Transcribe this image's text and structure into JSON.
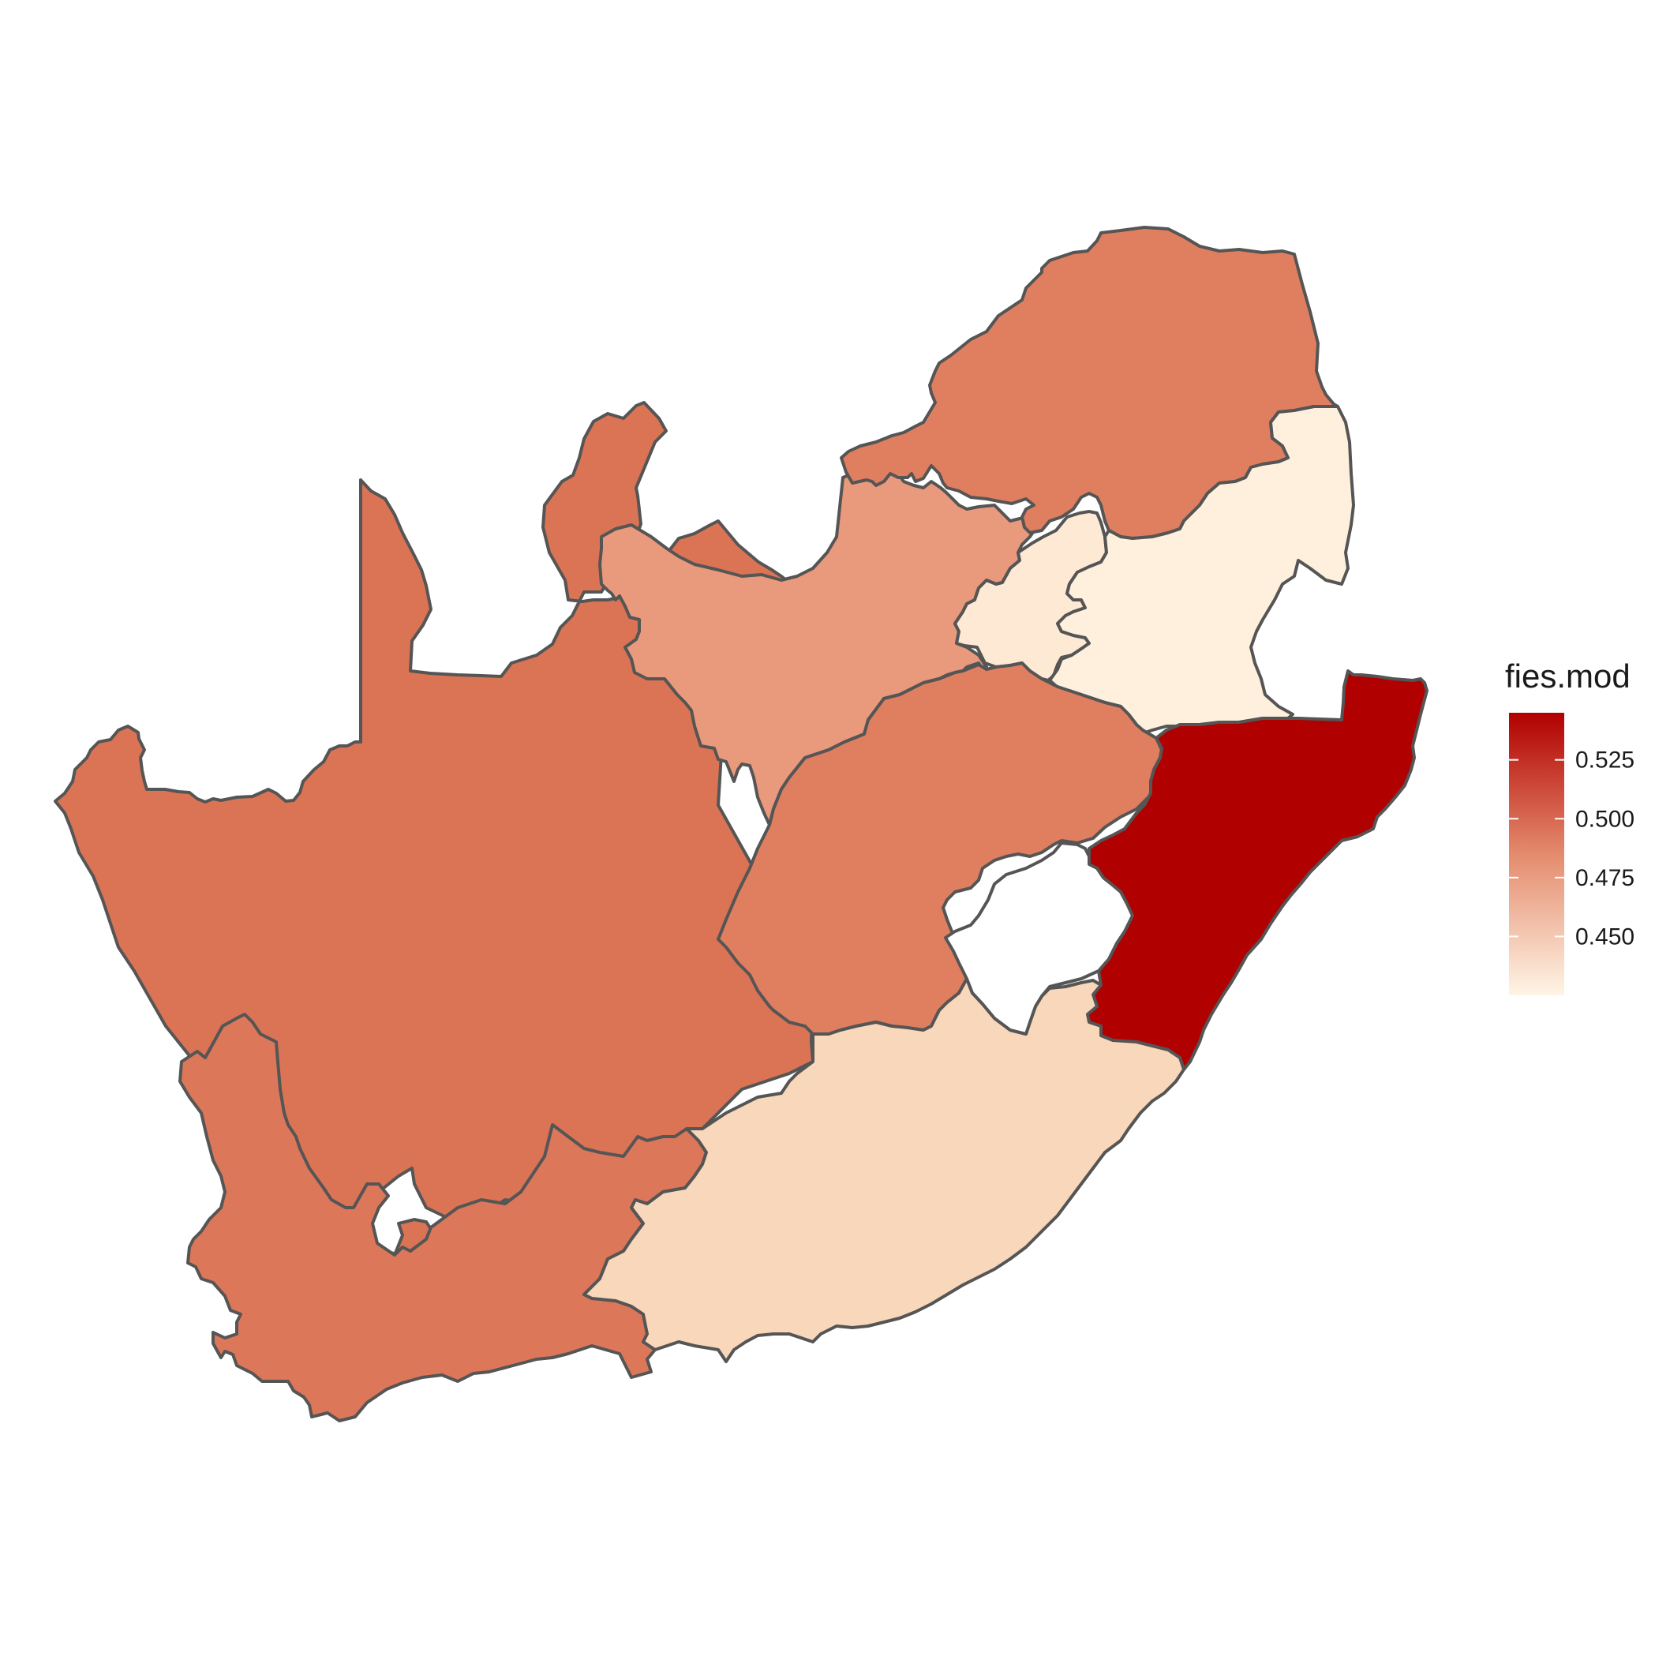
{
  "map": {
    "value_variable": "fies.mod",
    "border_color": "#555555",
    "missing_region_fill": "#ffffff",
    "regions": [
      {
        "id": "limpopo",
        "value": 0.495,
        "fill": "#e07f60"
      },
      {
        "id": "mpumalanga",
        "value": 0.425,
        "fill": "#fef0dc"
      },
      {
        "id": "gauteng",
        "value": 0.43,
        "fill": "#fde9d4"
      },
      {
        "id": "north-west",
        "value": 0.475,
        "fill": "#e99a7c"
      },
      {
        "id": "free-state",
        "value": 0.495,
        "fill": "#e07f60"
      },
      {
        "id": "kwazulu-natal",
        "value": 0.545,
        "fill": "#b10000"
      },
      {
        "id": "eastern-cape",
        "value": 0.445,
        "fill": "#f8d7bb"
      },
      {
        "id": "northern-cape",
        "value": 0.505,
        "fill": "#db7455"
      },
      {
        "id": "western-cape",
        "value": 0.5,
        "fill": "#dd7759"
      }
    ]
  },
  "legend": {
    "title": "fies.mod",
    "scale": {
      "min": 0.425,
      "max": 0.545,
      "low_color": "#fff5e6",
      "mid_color": "#e48b6d",
      "high_color": "#b10000"
    },
    "ticks": [
      {
        "value": 0.525,
        "label": "0.525"
      },
      {
        "value": 0.5,
        "label": "0.500"
      },
      {
        "value": 0.475,
        "label": "0.475"
      },
      {
        "value": 0.45,
        "label": "0.450"
      }
    ]
  }
}
